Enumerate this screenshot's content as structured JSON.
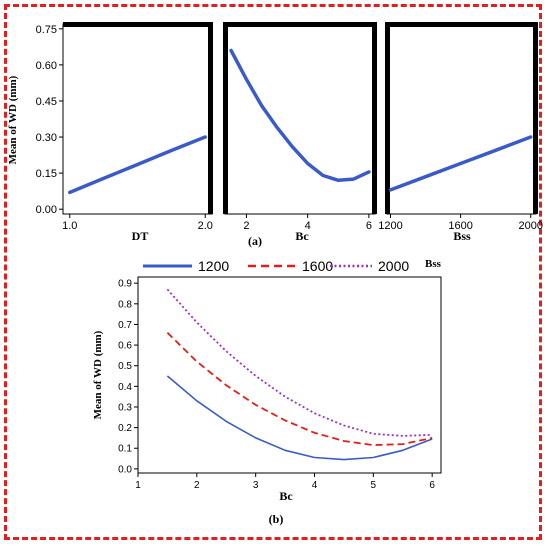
{
  "chart_data": [
    {
      "id": "a1",
      "type": "line",
      "xlabel": "DT",
      "ylabel": "Mean of WD (mm)",
      "xlim": [
        0.95,
        2.05
      ],
      "ylim": [
        -0.02,
        0.77
      ],
      "xticks": [
        1.0,
        2.0
      ],
      "xtick_labels": [
        "1.0",
        "2.0"
      ],
      "yticks": [
        0.0,
        0.15,
        0.3,
        0.45,
        0.6,
        0.75
      ],
      "ytick_labels": [
        "0.00",
        "0.15",
        "0.30",
        "0.45",
        "0.60",
        "0.75"
      ],
      "x": [
        1.0,
        1.25,
        1.5,
        1.75,
        2.0
      ],
      "y": [
        0.07,
        0.128,
        0.186,
        0.244,
        0.3
      ],
      "color": "#3a5bc7"
    },
    {
      "id": "a2",
      "type": "line",
      "xlabel": "Bc",
      "xlim": [
        1.3,
        6.2
      ],
      "ylim": [
        -0.02,
        0.77
      ],
      "xticks": [
        2,
        4,
        6
      ],
      "xtick_labels": [
        "2",
        "4",
        "6"
      ],
      "x": [
        1.5,
        2.0,
        2.5,
        3.0,
        3.5,
        4.0,
        4.5,
        5.0,
        5.5,
        6.0
      ],
      "y": [
        0.66,
        0.54,
        0.43,
        0.34,
        0.26,
        0.19,
        0.14,
        0.12,
        0.125,
        0.155
      ],
      "color": "#3a5bc7"
    },
    {
      "id": "a3",
      "type": "line",
      "xlabel": "Bss",
      "xlim": [
        1180,
        2030
      ],
      "ylim": [
        -0.02,
        0.77
      ],
      "xticks": [
        1200,
        1600,
        2000
      ],
      "xtick_labels": [
        "1200",
        "1600",
        "2000"
      ],
      "x": [
        1200,
        1400,
        1600,
        1800,
        2000
      ],
      "y": [
        0.08,
        0.135,
        0.19,
        0.245,
        0.3
      ],
      "color": "#3a5bc7"
    },
    {
      "id": "b",
      "type": "line",
      "xlabel": "Bc",
      "ylabel": "Mean of WD (mm)",
      "xlim": [
        1,
        6.15
      ],
      "ylim": [
        -0.02,
        0.93
      ],
      "xticks": [
        1,
        2,
        3,
        4,
        5,
        6
      ],
      "xtick_labels": [
        "1",
        "2",
        "3",
        "4",
        "5",
        "6"
      ],
      "yticks": [
        0,
        0.1,
        0.2,
        0.3,
        0.4,
        0.5,
        0.6,
        0.7,
        0.8,
        0.9
      ],
      "ytick_labels": [
        "0.0",
        "0.1",
        "0.2",
        "0.3",
        "0.4",
        "0.5",
        "0.6",
        "0.7",
        "0.8",
        "0.9"
      ],
      "legend_title": "Bss",
      "legend_position": "top",
      "series": [
        {
          "name": "1200",
          "color": "#3a5bc7",
          "dash": "solid",
          "x": [
            1.5,
            2.0,
            2.5,
            3.0,
            3.5,
            4.0,
            4.5,
            5.0,
            5.5,
            6.0
          ],
          "y": [
            0.45,
            0.33,
            0.23,
            0.15,
            0.09,
            0.055,
            0.045,
            0.055,
            0.09,
            0.145
          ]
        },
        {
          "name": "1600",
          "color": "#e0201c",
          "dash": "dashed",
          "x": [
            1.5,
            2.0,
            2.5,
            3.0,
            3.5,
            4.0,
            4.5,
            5.0,
            5.5,
            6.0
          ],
          "y": [
            0.66,
            0.52,
            0.405,
            0.31,
            0.235,
            0.175,
            0.135,
            0.115,
            0.12,
            0.15
          ]
        },
        {
          "name": "2000",
          "color": "#9b30c8",
          "dash": "dotted",
          "x": [
            1.5,
            2.0,
            2.5,
            3.0,
            3.5,
            4.0,
            4.5,
            5.0,
            5.5,
            6.0
          ],
          "y": [
            0.87,
            0.71,
            0.57,
            0.45,
            0.35,
            0.27,
            0.21,
            0.17,
            0.16,
            0.165
          ]
        }
      ]
    }
  ],
  "panel_labels": {
    "a": "(a)",
    "b": "(b)"
  },
  "frame_color": "#e0201c"
}
